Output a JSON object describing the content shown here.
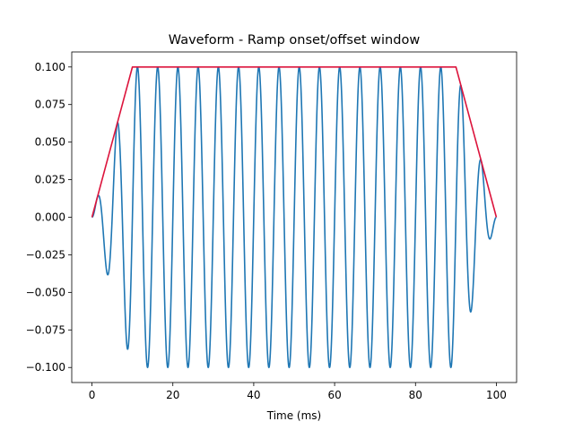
{
  "chart_data": {
    "type": "line",
    "title": "Waveform - Ramp onset/offset window",
    "xlabel": "Time (ms)",
    "ylabel": "",
    "xlim": [
      -5,
      105
    ],
    "ylim": [
      -0.11,
      0.11
    ],
    "xticks": [
      0,
      20,
      40,
      60,
      80,
      100
    ],
    "xtick_labels": [
      "0",
      "20",
      "40",
      "60",
      "80",
      "100"
    ],
    "yticks": [
      -0.1,
      -0.075,
      -0.05,
      -0.025,
      0.0,
      0.025,
      0.05,
      0.075,
      0.1
    ],
    "ytick_labels": [
      "−0.100",
      "−0.075",
      "−0.050",
      "−0.025",
      "0.000",
      "0.025",
      "0.050",
      "0.075",
      "0.100"
    ],
    "grid": false,
    "legend": "none",
    "series": [
      {
        "kind": "waveform",
        "color": "#1f77b4",
        "amplitude": 0.1,
        "frequency_hz": 200,
        "duration_ms": 100,
        "ramp_ms": 10,
        "sample_step_ms": 0.05
      },
      {
        "kind": "envelope",
        "color": "#dc143c",
        "x": [
          0,
          10,
          90,
          100
        ],
        "y": [
          0,
          0.1,
          0.1,
          0
        ]
      }
    ]
  }
}
